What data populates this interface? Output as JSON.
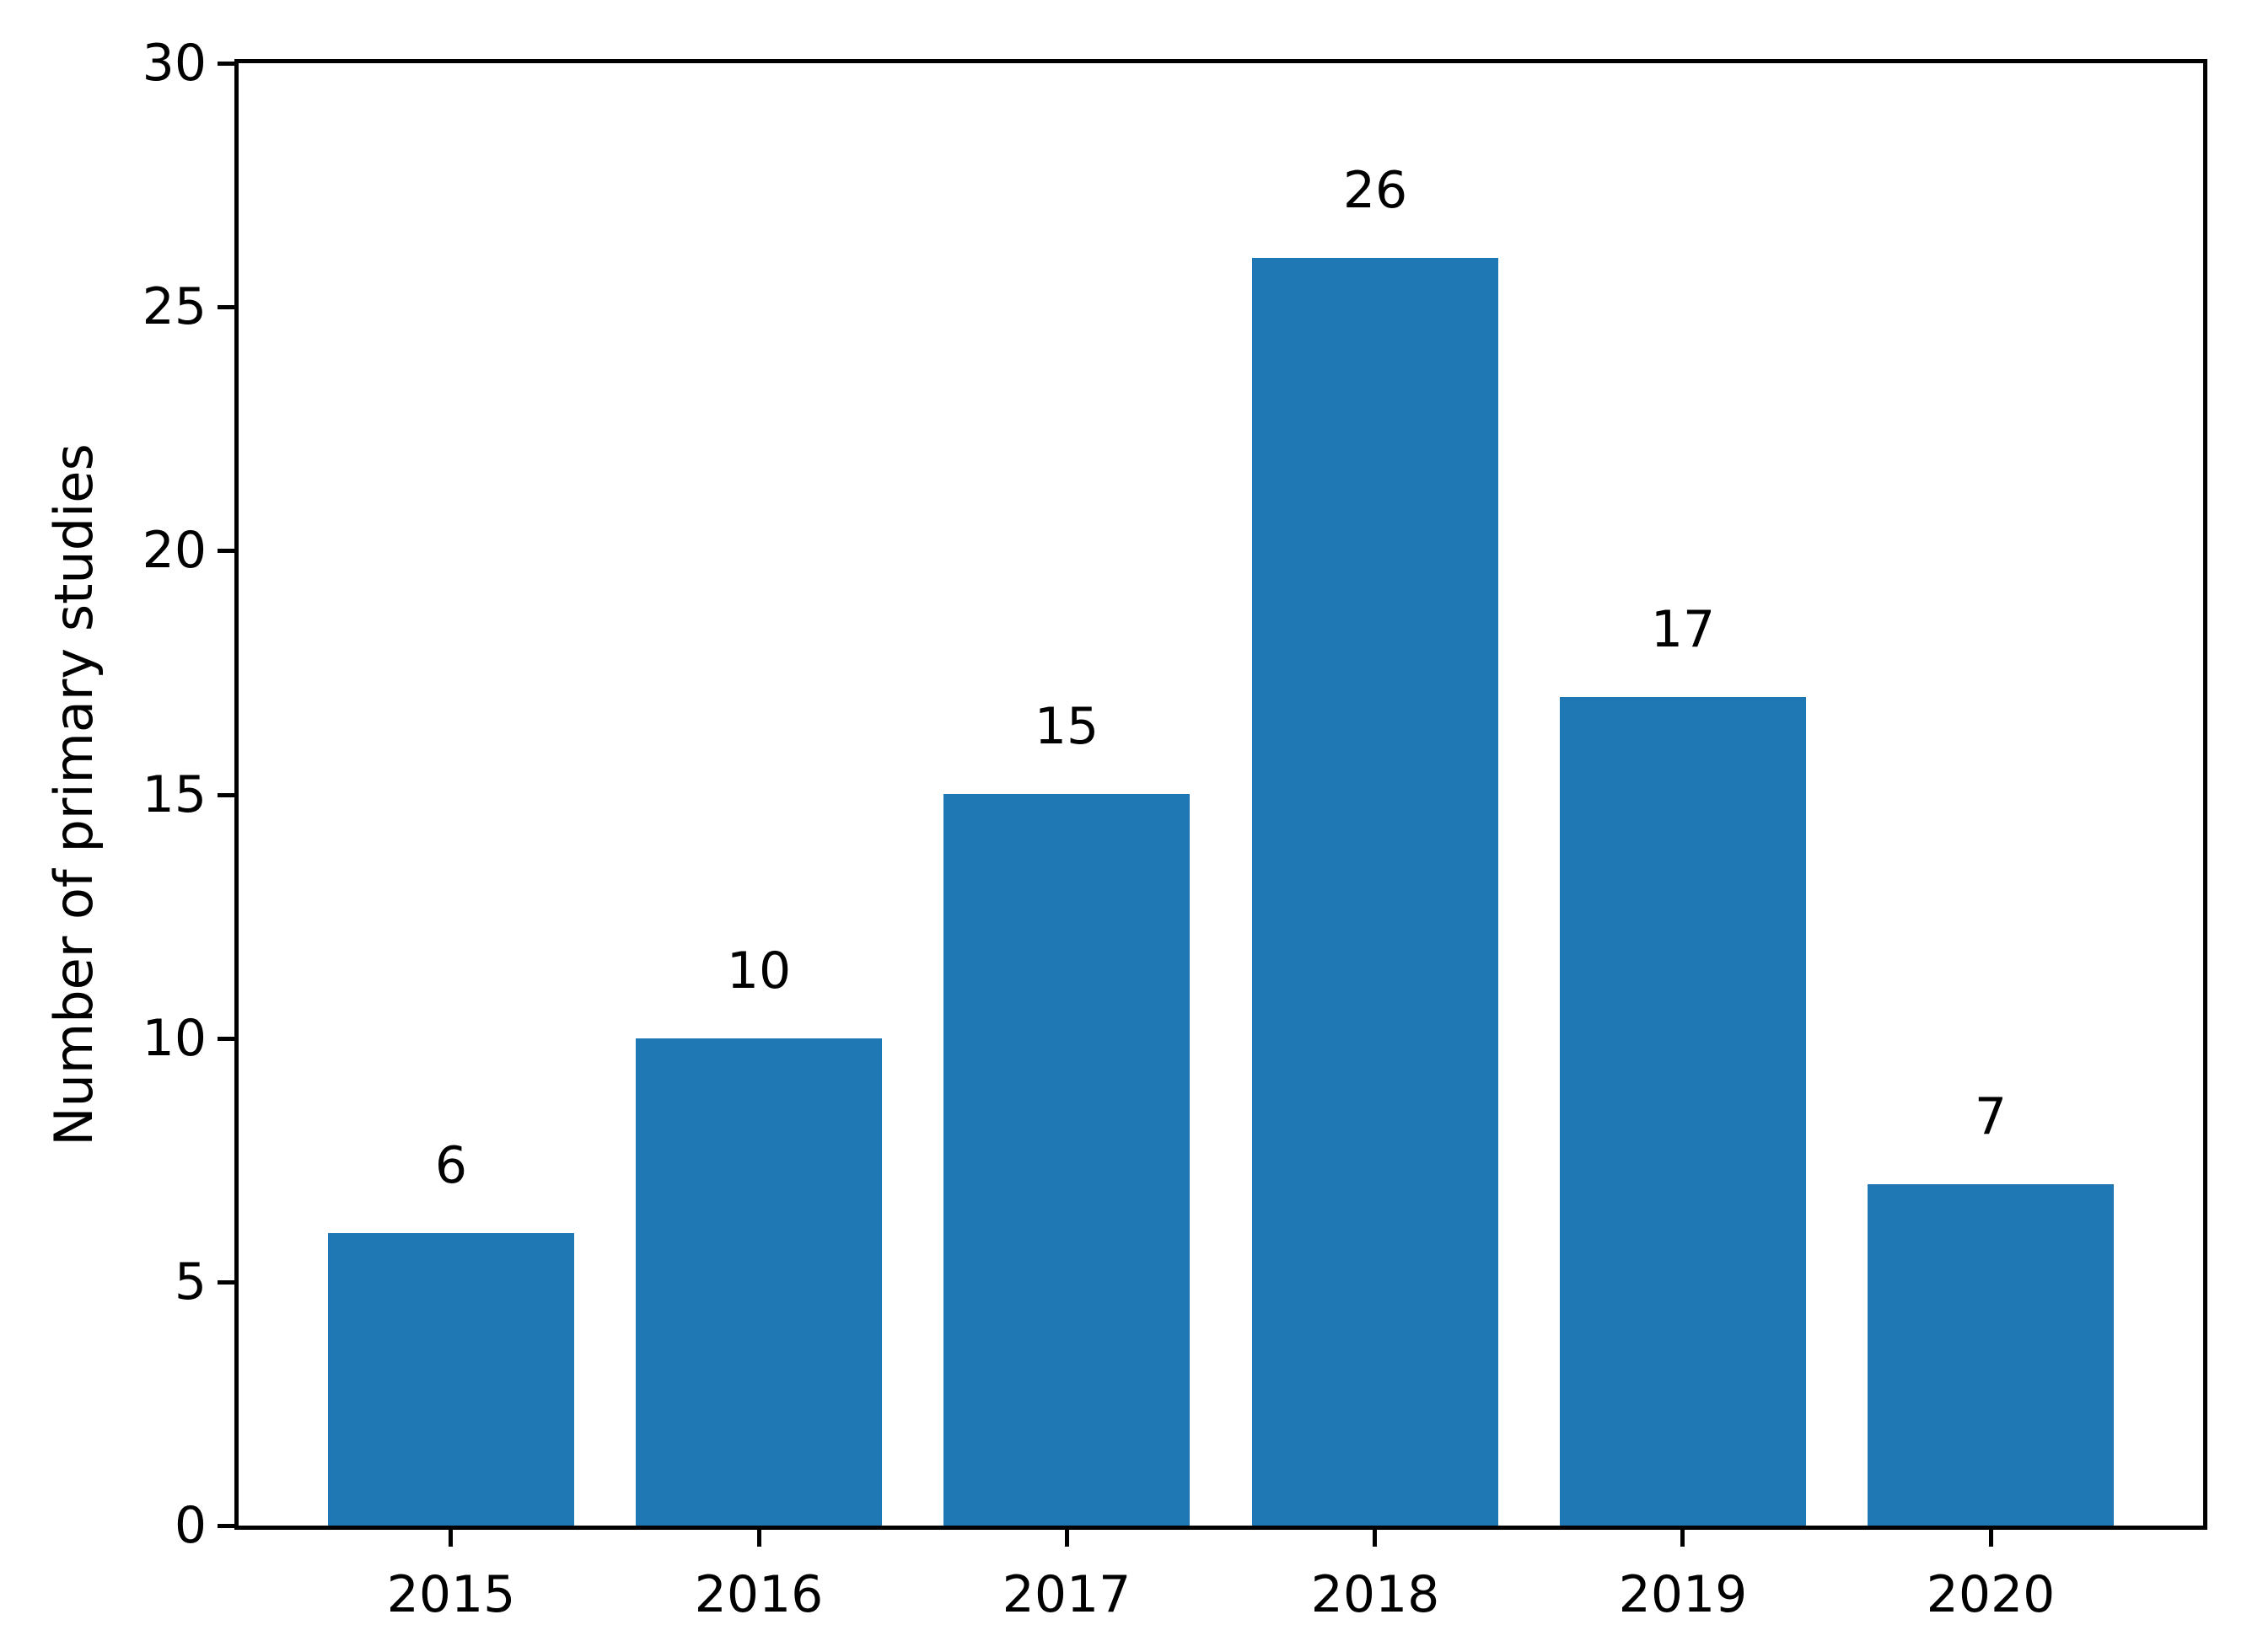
{
  "chart_data": {
    "type": "bar",
    "categories": [
      "2015",
      "2016",
      "2017",
      "2018",
      "2019",
      "2020"
    ],
    "values": [
      6,
      10,
      15,
      26,
      17,
      7
    ],
    "value_labels": [
      "6",
      "10",
      "15",
      "26",
      "17",
      "7"
    ],
    "title": "",
    "xlabel": "",
    "ylabel": "Number of primary studies",
    "ylim": [
      0,
      30
    ],
    "yticks": [
      0,
      5,
      10,
      15,
      20,
      25,
      30
    ],
    "ytick_labels": [
      "0",
      "5",
      "10",
      "15",
      "20",
      "25",
      "30"
    ],
    "grid": false,
    "legend": null,
    "bar_color": "#1f77b4",
    "axis_color": "#000000",
    "text_color": "#000000",
    "background_color": "#ffffff"
  }
}
